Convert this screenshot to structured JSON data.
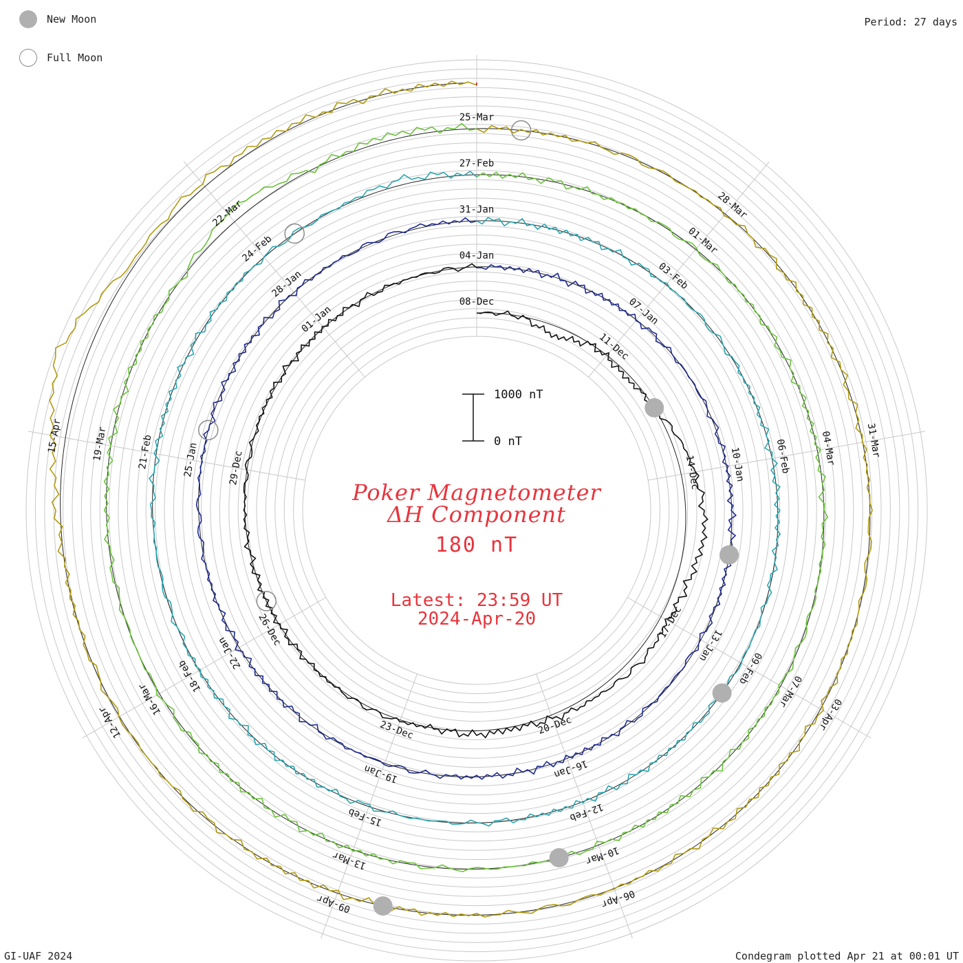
{
  "legend": {
    "new_moon": {
      "label": "New Moon",
      "color": "#b0b0b0"
    },
    "full_moon": {
      "label": "Full Moon",
      "color": "#ffffff",
      "stroke": "#8a8a8a"
    }
  },
  "period_label": "Period: 27 days",
  "footer_left": "GI-UAF 2024",
  "footer_right": "Condegram plotted Apr 21 at 00:01 UT",
  "center": {
    "title_line1": "Poker Magnetometer",
    "title_line2": "ΔH Component",
    "value_label": "180 nT",
    "latest_line1": "Latest: 23:59 UT",
    "latest_line2": "2024-Apr-20"
  },
  "scale_bar": {
    "top_label": "1000 nT",
    "bottom_label": "0 nT"
  },
  "chart_data": {
    "type": "line",
    "title": "Poker Magnetometer ΔH Component",
    "subtitle": "180 nT",
    "period_days": 27,
    "start_date": "2023-12-08",
    "end_date": "2024-04-20",
    "scale_nT": [
      0,
      1000
    ],
    "spiral_date_labels": [
      "08-Dec",
      "11-Dec",
      "14-Dec",
      "17-Dec",
      "20-Dec",
      "23-Dec",
      "26-Dec",
      "29-Dec",
      "01-Jan",
      "04-Jan",
      "07-Jan",
      "10-Jan",
      "13-Jan",
      "16-Jan",
      "19-Jan",
      "22-Jan",
      "25-Jan",
      "28-Jan",
      "31-Jan",
      "03-Feb",
      "06-Feb",
      "09-Feb",
      "12-Feb",
      "15-Feb",
      "18-Feb",
      "21-Feb",
      "24-Feb",
      "27-Feb",
      "01-Mar",
      "04-Mar",
      "07-Mar",
      "10-Mar",
      "13-Mar",
      "16-Mar",
      "19-Mar",
      "22-Mar",
      "25-Mar",
      "28-Mar",
      "31-Mar",
      "03-Apr",
      "06-Apr",
      "09-Apr",
      "12-Apr",
      "15-Apr"
    ],
    "new_moon_dates": [
      "2023-12-12",
      "2024-01-11",
      "2024-02-09",
      "2024-03-10",
      "2024-04-08"
    ],
    "full_moon_dates": [
      "2023-12-26",
      "2024-01-25",
      "2024-02-24",
      "2024-03-25"
    ],
    "series_colors": [
      "#111111",
      "#1e2a90",
      "#2aa6b0",
      "#6cc23c",
      "#b09a10",
      "#b01010"
    ],
    "series": [
      {
        "values_nT": [
          0,
          0,
          220,
          0,
          90,
          0,
          -200,
          -340,
          -420,
          -260,
          -160,
          -200,
          -120,
          -100,
          -40,
          -80,
          0,
          -40,
          -20,
          0,
          0,
          0,
          0,
          0,
          0,
          -20,
          0,
          0,
          0,
          0,
          0
        ]
      },
      {
        "values_nT": [
          0,
          0,
          0,
          0,
          0,
          0,
          0,
          0,
          0,
          0,
          20,
          0,
          0,
          0,
          0,
          0,
          0,
          0,
          0,
          0,
          0,
          0,
          0,
          0,
          0,
          0,
          0,
          -40,
          0
        ]
      },
      {
        "values_nT": [
          0,
          0,
          0,
          0,
          0,
          0,
          0,
          0,
          0,
          0,
          0,
          0,
          0,
          0,
          0,
          0,
          0,
          0,
          0,
          0,
          0,
          0,
          0,
          0,
          0,
          0,
          0,
          -120,
          0
        ]
      },
      {
        "values_nT": [
          0,
          0,
          0,
          0,
          0,
          0,
          0,
          0,
          0,
          0,
          0,
          0,
          0,
          0,
          0,
          0,
          0,
          0,
          0,
          0,
          0,
          0,
          0,
          0,
          0,
          -260,
          0,
          -120,
          0
        ]
      },
      {
        "values_nT": [
          0,
          0,
          0,
          0,
          0,
          0,
          0,
          0,
          0,
          0,
          0,
          0,
          0,
          0,
          0,
          0,
          0,
          0,
          0,
          0,
          -180,
          -640,
          -80,
          -120,
          -60,
          -20,
          0
        ]
      },
      {
        "values_nT": [
          0,
          0,
          0,
          0,
          0,
          0,
          0,
          0,
          0,
          0,
          0,
          0,
          0,
          0,
          0,
          0,
          0,
          0,
          0,
          0,
          -160,
          -220,
          -80,
          -40,
          -60
        ]
      }
    ]
  }
}
